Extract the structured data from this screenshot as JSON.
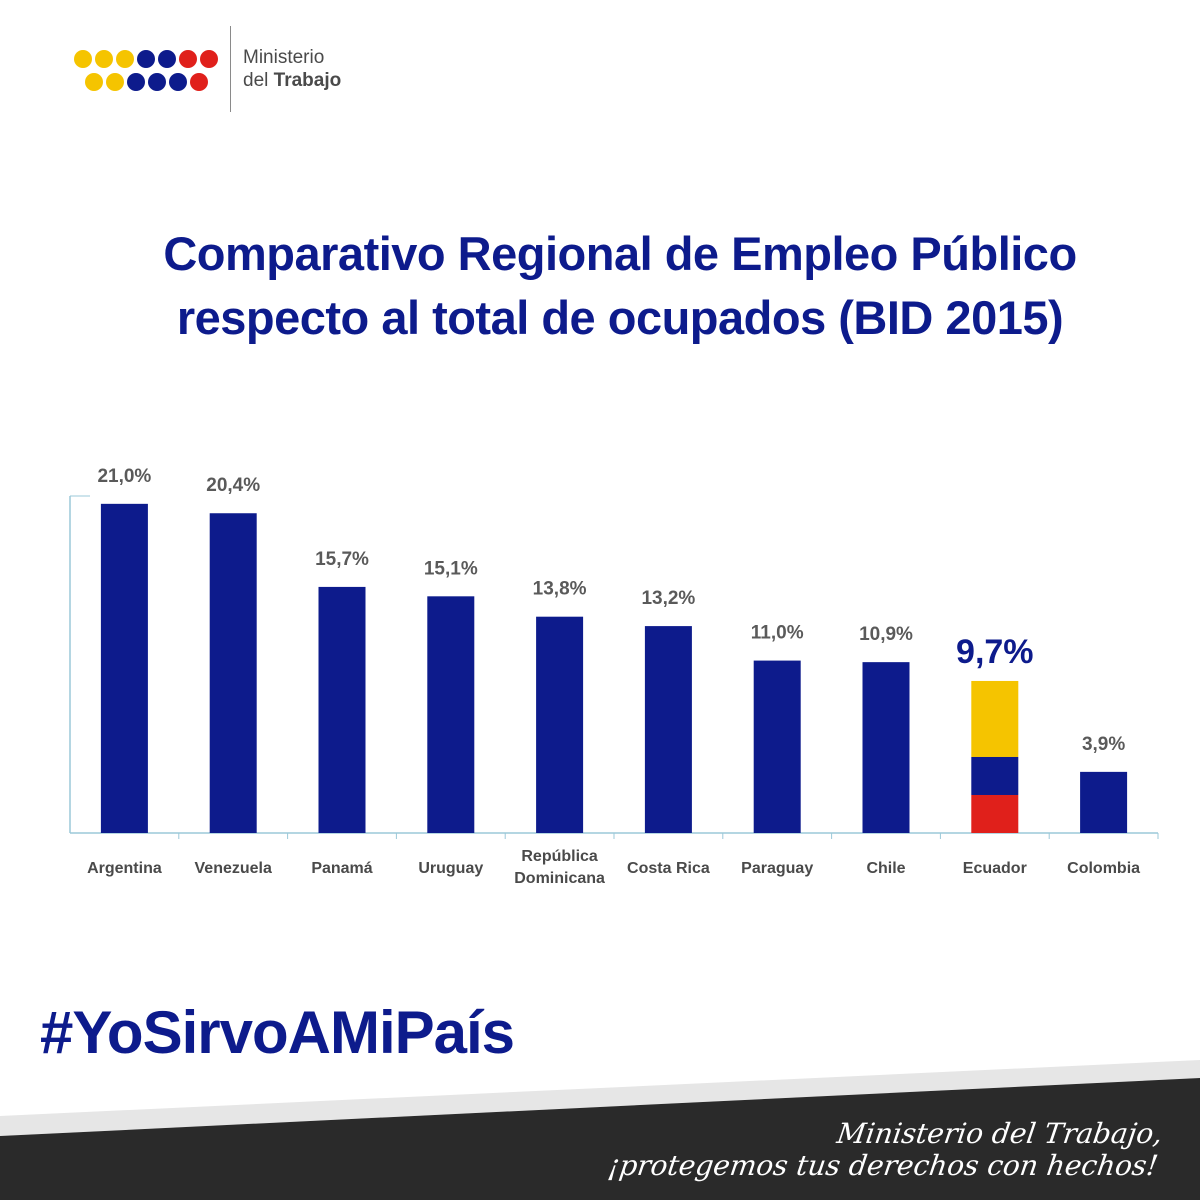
{
  "brand": {
    "line1": "Ministerio",
    "line2_prefix": "del",
    "line2_strong": "Trabajo"
  },
  "title": {
    "line1": "Comparativo Regional de Empleo Público",
    "line2": "respecto al total de ocupados (BID 2015)"
  },
  "colors": {
    "bar": "#0d1b8c",
    "ecuador_yellow": "#f5c400",
    "ecuador_blue": "#0d1b8c",
    "ecuador_red": "#e0201b",
    "axis": "#9bc8d8",
    "footer_dark": "#2a2a2a",
    "footer_light": "#e6e6e6"
  },
  "chart_data": {
    "type": "bar",
    "title": "Comparativo Regional de Empleo Público respecto al total de ocupados (BID 2015)",
    "xlabel": "",
    "ylabel": "",
    "categories": [
      "Argentina",
      "Venezuela",
      "Panamá",
      "Uruguay",
      "República Dominicana",
      "Costa Rica",
      "Paraguay",
      "Chile",
      "Ecuador",
      "Colombia"
    ],
    "category_lines": [
      [
        "Argentina"
      ],
      [
        "Venezuela"
      ],
      [
        "Panamá"
      ],
      [
        "Uruguay"
      ],
      [
        "República",
        "Dominicana"
      ],
      [
        "Costa Rica"
      ],
      [
        "Paraguay"
      ],
      [
        "Chile"
      ],
      [
        "Ecuador"
      ],
      [
        "Colombia"
      ]
    ],
    "values": [
      21.0,
      20.4,
      15.7,
      15.1,
      13.8,
      13.2,
      11.0,
      10.9,
      9.7,
      3.9
    ],
    "labels": [
      "21,0%",
      "20,4%",
      "15,7%",
      "15,1%",
      "13,8%",
      "13,2%",
      "11,0%",
      "10,9%",
      "9,7%",
      "3,9%"
    ],
    "highlight": "Ecuador",
    "ylim": [
      0,
      21.5
    ],
    "grid": false,
    "legend": "none"
  },
  "hashtag": "#YoSirvoAMiPaís",
  "slogan": {
    "line1": "Ministerio del Trabajo,",
    "line2": "¡protegemos tus derechos con hechos!"
  }
}
